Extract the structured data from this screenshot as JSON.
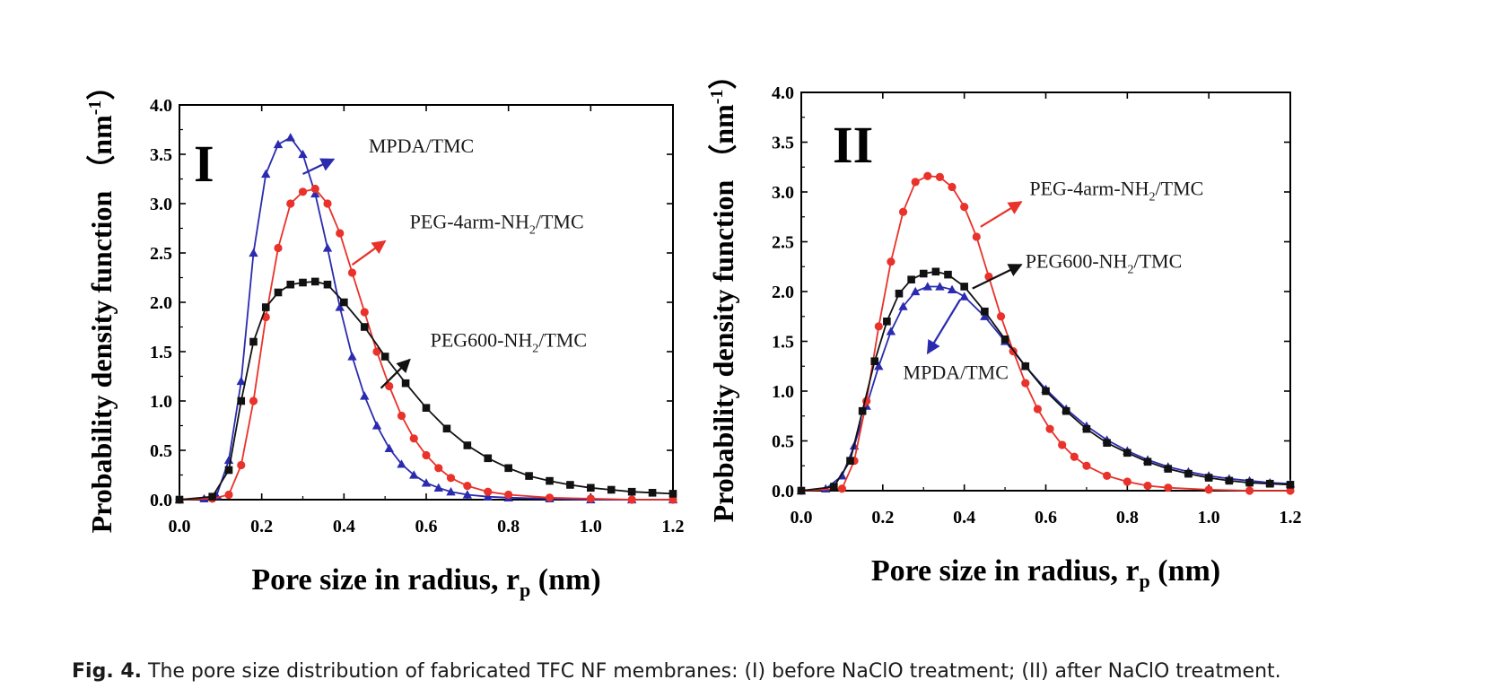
{
  "caption": {
    "label": "Fig. 4.",
    "text": "The pore size distribution of fabricated TFC NF membranes: (I) before NaClO treatment; (II) after NaClO treatment."
  },
  "colors": {
    "MPDA/TMC": "#2b2bb0",
    "PEG-4arm-NH2/TMC": "#e8322a",
    "PEG600-NH2/TMC": "#111111"
  },
  "chart_data": [
    {
      "type": "line",
      "panel_label": "I",
      "xlabel": "Pore size in radius, r",
      "xlabel_sub": "p",
      "xlabel_unit": "(nm)",
      "ylabel": "Probability density function",
      "ylabel_unit": "（nm",
      "ylabel_sup": "-1",
      "ylabel_close": "）",
      "xlim": [
        0.0,
        1.2
      ],
      "ylim": [
        0.0,
        4.0
      ],
      "xticks": [
        "0.0",
        "0.2",
        "0.4",
        "0.6",
        "0.8",
        "1.0",
        "1.2"
      ],
      "yticks": [
        "0.0",
        "0.5",
        "1.0",
        "1.5",
        "2.0",
        "2.5",
        "3.0",
        "3.5",
        "4.0"
      ],
      "series": [
        {
          "name": "MPDA/TMC",
          "marker": "triangle",
          "x": [
            0.0,
            0.06,
            0.09,
            0.12,
            0.15,
            0.18,
            0.21,
            0.24,
            0.27,
            0.3,
            0.33,
            0.36,
            0.39,
            0.42,
            0.45,
            0.48,
            0.51,
            0.54,
            0.57,
            0.6,
            0.63,
            0.66,
            0.7,
            0.75,
            0.8,
            0.9,
            1.0,
            1.1,
            1.2
          ],
          "y": [
            0.0,
            0.01,
            0.04,
            0.4,
            1.2,
            2.5,
            3.3,
            3.6,
            3.67,
            3.5,
            3.1,
            2.55,
            1.95,
            1.45,
            1.05,
            0.75,
            0.52,
            0.36,
            0.25,
            0.17,
            0.12,
            0.08,
            0.05,
            0.03,
            0.02,
            0.01,
            0.0,
            0.0,
            0.0
          ]
        },
        {
          "name": "PEG-4arm-NH2/TMC",
          "marker": "circle",
          "x": [
            0.0,
            0.08,
            0.12,
            0.15,
            0.18,
            0.21,
            0.24,
            0.27,
            0.3,
            0.33,
            0.36,
            0.39,
            0.42,
            0.45,
            0.48,
            0.51,
            0.54,
            0.57,
            0.6,
            0.63,
            0.66,
            0.7,
            0.75,
            0.8,
            0.9,
            1.0,
            1.1,
            1.2
          ],
          "y": [
            0.0,
            0.01,
            0.05,
            0.35,
            1.0,
            1.85,
            2.55,
            3.0,
            3.12,
            3.15,
            3.0,
            2.7,
            2.3,
            1.9,
            1.5,
            1.15,
            0.85,
            0.62,
            0.45,
            0.32,
            0.22,
            0.14,
            0.08,
            0.05,
            0.02,
            0.01,
            0.0,
            0.0
          ]
        },
        {
          "name": "PEG600-NH2/TMC",
          "marker": "square",
          "x": [
            0.0,
            0.08,
            0.12,
            0.15,
            0.18,
            0.21,
            0.24,
            0.27,
            0.3,
            0.33,
            0.36,
            0.4,
            0.45,
            0.5,
            0.55,
            0.6,
            0.65,
            0.7,
            0.75,
            0.8,
            0.85,
            0.9,
            0.95,
            1.0,
            1.05,
            1.1,
            1.15,
            1.2
          ],
          "y": [
            0.0,
            0.03,
            0.3,
            1.0,
            1.6,
            1.95,
            2.1,
            2.18,
            2.2,
            2.21,
            2.18,
            2.0,
            1.75,
            1.45,
            1.18,
            0.93,
            0.72,
            0.55,
            0.42,
            0.32,
            0.24,
            0.19,
            0.15,
            0.12,
            0.1,
            0.08,
            0.07,
            0.06
          ]
        }
      ],
      "annotations": [
        {
          "series": "MPDA/TMC",
          "text": "MPDA/TMC",
          "sub": "",
          "rest": "",
          "x": 0.46,
          "y": 3.52,
          "ax": 0.3,
          "ay": 3.3,
          "tx": 0.375,
          "ty": 3.45
        },
        {
          "series": "PEG-4arm-NH2/TMC",
          "text": "PEG-4arm-NH",
          "sub": "2",
          "rest": "/TMC",
          "x": 0.56,
          "y": 2.75,
          "ax": 0.42,
          "ay": 2.38,
          "tx": 0.5,
          "ty": 2.62
        },
        {
          "series": "PEG600-NH2/TMC",
          "text": "PEG600-NH",
          "sub": "2",
          "rest": "/TMC",
          "x": 0.61,
          "y": 1.55,
          "ax": 0.49,
          "ay": 1.13,
          "tx": 0.56,
          "ty": 1.42
        }
      ]
    },
    {
      "type": "line",
      "panel_label": "II",
      "xlabel": "Pore size in radius, r",
      "xlabel_sub": "p",
      "xlabel_unit": "(nm)",
      "ylabel": "Probability density function",
      "ylabel_unit": "（nm",
      "ylabel_sup": "-1",
      "ylabel_close": "）",
      "xlim": [
        0.0,
        1.2
      ],
      "ylim": [
        0.0,
        4.0
      ],
      "xticks": [
        "0.0",
        "0.2",
        "0.4",
        "0.6",
        "0.8",
        "1.0",
        "1.2"
      ],
      "yticks": [
        "0.0",
        "0.5",
        "1.0",
        "1.5",
        "2.0",
        "2.5",
        "3.0",
        "3.5",
        "4.0"
      ],
      "series": [
        {
          "name": "MPDA/TMC",
          "marker": "triangle",
          "x": [
            0.0,
            0.06,
            0.1,
            0.13,
            0.16,
            0.19,
            0.22,
            0.25,
            0.28,
            0.31,
            0.34,
            0.37,
            0.4,
            0.45,
            0.5,
            0.55,
            0.6,
            0.65,
            0.7,
            0.75,
            0.8,
            0.85,
            0.9,
            0.95,
            1.0,
            1.05,
            1.1,
            1.15,
            1.2
          ],
          "y": [
            0.0,
            0.02,
            0.15,
            0.45,
            0.85,
            1.25,
            1.6,
            1.85,
            2.0,
            2.05,
            2.05,
            2.02,
            1.95,
            1.75,
            1.5,
            1.25,
            1.02,
            0.82,
            0.65,
            0.51,
            0.4,
            0.31,
            0.24,
            0.19,
            0.15,
            0.12,
            0.1,
            0.08,
            0.07
          ]
        },
        {
          "name": "PEG-4arm-NH2/TMC",
          "marker": "circle",
          "x": [
            0.0,
            0.1,
            0.13,
            0.16,
            0.19,
            0.22,
            0.25,
            0.28,
            0.31,
            0.34,
            0.37,
            0.4,
            0.43,
            0.46,
            0.49,
            0.52,
            0.55,
            0.58,
            0.61,
            0.64,
            0.67,
            0.7,
            0.75,
            0.8,
            0.85,
            0.9,
            1.0,
            1.1,
            1.2
          ],
          "y": [
            0.0,
            0.02,
            0.3,
            0.9,
            1.65,
            2.3,
            2.8,
            3.1,
            3.16,
            3.15,
            3.05,
            2.85,
            2.55,
            2.15,
            1.75,
            1.4,
            1.08,
            0.82,
            0.62,
            0.46,
            0.34,
            0.25,
            0.15,
            0.09,
            0.05,
            0.03,
            0.01,
            0.0,
            0.0
          ]
        },
        {
          "name": "PEG600-NH2/TMC",
          "marker": "square",
          "x": [
            0.0,
            0.08,
            0.12,
            0.15,
            0.18,
            0.21,
            0.24,
            0.27,
            0.3,
            0.33,
            0.36,
            0.4,
            0.45,
            0.5,
            0.55,
            0.6,
            0.65,
            0.7,
            0.75,
            0.8,
            0.85,
            0.9,
            0.95,
            1.0,
            1.05,
            1.1,
            1.15,
            1.2
          ],
          "y": [
            0.0,
            0.04,
            0.3,
            0.8,
            1.3,
            1.7,
            1.98,
            2.12,
            2.18,
            2.2,
            2.17,
            2.05,
            1.8,
            1.52,
            1.25,
            1.0,
            0.8,
            0.62,
            0.48,
            0.38,
            0.29,
            0.22,
            0.17,
            0.13,
            0.1,
            0.08,
            0.07,
            0.06
          ]
        }
      ],
      "annotations": [
        {
          "series": "PEG-4arm-NH2/TMC",
          "text": "PEG-4arm-NH",
          "sub": "2",
          "rest": "/TMC",
          "x": 0.56,
          "y": 2.97,
          "ax": 0.44,
          "ay": 2.65,
          "tx": 0.54,
          "ty": 2.9
        },
        {
          "series": "PEG600-NH2/TMC",
          "text": "PEG600-NH",
          "sub": "2",
          "rest": "/TMC",
          "x": 0.55,
          "y": 2.24,
          "ax": 0.42,
          "ay": 2.03,
          "tx": 0.54,
          "ty": 2.27
        },
        {
          "series": "MPDA/TMC",
          "text": "MPDA/TMC",
          "sub": "",
          "rest": "",
          "x": 0.25,
          "y": 1.12,
          "ax": 0.39,
          "ay": 1.92,
          "tx": 0.31,
          "ty": 1.38
        }
      ]
    }
  ]
}
